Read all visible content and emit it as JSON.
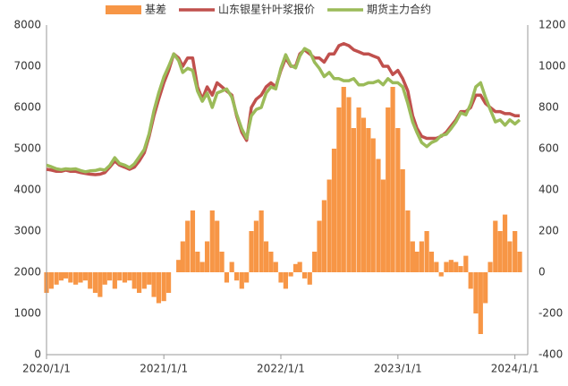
{
  "chart_data": {
    "type": "bar-line",
    "x": [
      "2020/1/1",
      "2020/1/16",
      "2020/2/1",
      "2020/2/16",
      "2020/3/1",
      "2020/3/16",
      "2020/4/1",
      "2020/4/16",
      "2020/5/1",
      "2020/5/16",
      "2020/6/1",
      "2020/6/16",
      "2020/7/1",
      "2020/7/16",
      "2020/8/1",
      "2020/8/16",
      "2020/9/1",
      "2020/9/16",
      "2020/10/1",
      "2020/10/16",
      "2020/11/1",
      "2020/11/16",
      "2020/12/1",
      "2020/12/16",
      "2021/1/1",
      "2021/1/16",
      "2021/2/1",
      "2021/2/16",
      "2021/3/1",
      "2021/3/16",
      "2021/4/1",
      "2021/4/16",
      "2021/5/1",
      "2021/5/16",
      "2021/6/1",
      "2021/6/16",
      "2021/7/1",
      "2021/7/16",
      "2021/8/1",
      "2021/8/16",
      "2021/9/1",
      "2021/9/16",
      "2021/10/1",
      "2021/10/16",
      "2021/11/1",
      "2021/11/16",
      "2021/12/1",
      "2021/12/16",
      "2022/1/1",
      "2022/1/16",
      "2022/2/1",
      "2022/2/16",
      "2022/3/1",
      "2022/3/16",
      "2022/4/1",
      "2022/4/16",
      "2022/5/1",
      "2022/5/16",
      "2022/6/1",
      "2022/6/16",
      "2022/7/1",
      "2022/7/16",
      "2022/8/1",
      "2022/8/16",
      "2022/9/1",
      "2022/9/16",
      "2022/10/1",
      "2022/10/16",
      "2022/11/1",
      "2022/11/16",
      "2022/12/1",
      "2022/12/16",
      "2023/1/1",
      "2023/1/16",
      "2023/2/1",
      "2023/2/16",
      "2023/3/1",
      "2023/3/16",
      "2023/4/1",
      "2023/4/16",
      "2023/5/1",
      "2023/5/16",
      "2023/6/1",
      "2023/6/16",
      "2023/7/1",
      "2023/7/16",
      "2023/8/1",
      "2023/8/16",
      "2023/9/1",
      "2023/9/16",
      "2023/10/1",
      "2023/10/16",
      "2023/11/1",
      "2023/11/16",
      "2023/12/1",
      "2023/12/16",
      "2024/1/1",
      "2024/1/16"
    ],
    "series": [
      {
        "name": "基差",
        "kind": "bar",
        "axis": "y2",
        "color": "#f79646",
        "values": [
          -100,
          -80,
          -60,
          -40,
          -30,
          -50,
          -60,
          -50,
          -40,
          -80,
          -100,
          -120,
          -60,
          -40,
          -80,
          -40,
          -50,
          -40,
          -80,
          -100,
          -80,
          -60,
          -120,
          -150,
          -140,
          -100,
          0,
          60,
          150,
          250,
          300,
          100,
          50,
          150,
          300,
          250,
          100,
          -50,
          50,
          -40,
          -80,
          -50,
          200,
          250,
          300,
          150,
          100,
          50,
          -50,
          -80,
          -20,
          40,
          50,
          -30,
          -60,
          100,
          250,
          350,
          450,
          600,
          800,
          900,
          850,
          700,
          800,
          750,
          700,
          650,
          550,
          450,
          800,
          900,
          700,
          500,
          300,
          150,
          100,
          150,
          200,
          100,
          50,
          -20,
          50,
          60,
          50,
          30,
          80,
          -80,
          -200,
          -300,
          -150,
          50,
          250,
          200,
          280,
          150,
          200,
          100
        ]
      },
      {
        "name": "山东银星针叶浆报价",
        "kind": "line",
        "color": "#c0504d",
        "values": [
          4500,
          4480,
          4450,
          4450,
          4480,
          4450,
          4450,
          4420,
          4400,
          4380,
          4370,
          4380,
          4420,
          4550,
          4700,
          4600,
          4550,
          4500,
          4550,
          4700,
          4900,
          5300,
          5800,
          6200,
          6600,
          6900,
          7300,
          7200,
          7000,
          7200,
          7200,
          6500,
          6200,
          6500,
          6300,
          6600,
          6500,
          6400,
          6300,
          5800,
          5400,
          5200,
          6000,
          6200,
          6300,
          6500,
          6600,
          6500,
          6900,
          7200,
          7000,
          7000,
          7300,
          7400,
          7300,
          7200,
          7200,
          7100,
          7300,
          7300,
          7500,
          7550,
          7500,
          7400,
          7350,
          7300,
          7300,
          7250,
          7200,
          7000,
          7000,
          6800,
          6900,
          6700,
          6400,
          5800,
          5500,
          5300,
          5250,
          5250,
          5250,
          5300,
          5400,
          5550,
          5700,
          5900,
          5900,
          6000,
          6300,
          6300,
          6100,
          6000,
          5900,
          5900,
          5850,
          5850,
          5800,
          5800
        ]
      },
      {
        "name": "期货主力合约",
        "kind": "line",
        "color": "#9bbb59",
        "values": [
          4600,
          4560,
          4510,
          4490,
          4510,
          4500,
          4510,
          4470,
          4440,
          4460,
          4470,
          4500,
          4480,
          4590,
          4780,
          4640,
          4600,
          4540,
          4630,
          4800,
          4980,
          5360,
          5920,
          6350,
          6740,
          7000,
          7300,
          7140,
          6850,
          6950,
          6900,
          6400,
          6150,
          6350,
          6000,
          6350,
          6400,
          6450,
          6250,
          5840,
          5480,
          5250,
          5800,
          5950,
          6000,
          6350,
          6500,
          6450,
          6950,
          7280,
          7020,
          6960,
          7250,
          7430,
          7360,
          7100,
          6950,
          6750,
          6850,
          6700,
          6700,
          6650,
          6650,
          6700,
          6550,
          6550,
          6600,
          6600,
          6650,
          6550,
          6700,
          6600,
          6600,
          6500,
          6100,
          5650,
          5400,
          5150,
          5050,
          5150,
          5200,
          5320,
          5350,
          5490,
          5650,
          5870,
          5820,
          6080,
          6500,
          6600,
          6250,
          5950,
          5650,
          5700,
          5570,
          5700,
          5600,
          5700
        ]
      }
    ],
    "xlim": [
      "2020/1/1",
      "2024/2/10"
    ],
    "xticks": [
      "2020/1/1",
      "2021/1/1",
      "2022/1/1",
      "2023/1/1",
      "2024/1/1"
    ],
    "ylim": [
      0,
      8000
    ],
    "yticks": [
      0,
      1000,
      2000,
      3000,
      4000,
      5000,
      6000,
      7000,
      8000
    ],
    "y2lim": [
      -400,
      1200
    ],
    "y2ticks": [
      -400,
      -200,
      0,
      200,
      400,
      600,
      800,
      1000,
      1200
    ],
    "legend": "top"
  }
}
